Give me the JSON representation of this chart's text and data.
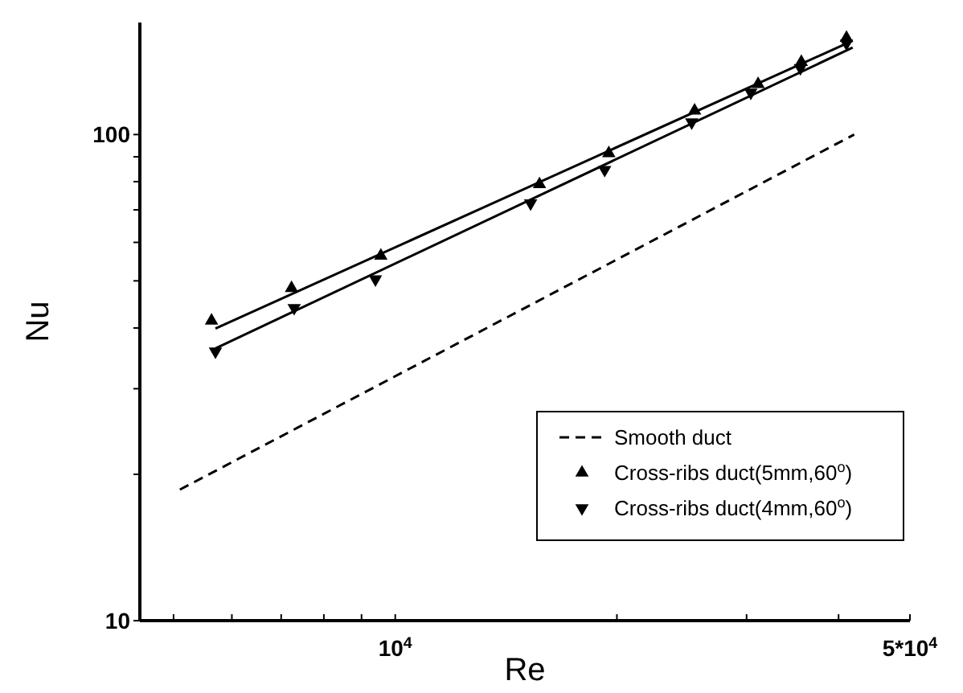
{
  "chart_data": {
    "type": "line",
    "xlabel": "Re",
    "ylabel": "Nu",
    "log": "xy",
    "xlim": [
      4500,
      50000
    ],
    "ylim": [
      10,
      170
    ],
    "xticks": [
      {
        "value": 5000,
        "label": null
      },
      {
        "value": 6000,
        "label": null
      },
      {
        "value": 7000,
        "label": null
      },
      {
        "value": 8000,
        "label": null
      },
      {
        "value": 9000,
        "label": null
      },
      {
        "value": 10000,
        "label": "10$^{4}$"
      },
      {
        "value": 20000,
        "label": null
      },
      {
        "value": 30000,
        "label": null
      },
      {
        "value": 40000,
        "label": null
      },
      {
        "value": 50000,
        "label": "5*10$^{4}$"
      }
    ],
    "yticks": [
      10,
      {
        "value": 20,
        "label": null
      },
      {
        "value": 30,
        "label": null
      },
      {
        "value": 40,
        "label": null
      },
      {
        "value": 50,
        "label": null
      },
      {
        "value": 60,
        "label": null
      },
      {
        "value": 70,
        "label": null
      },
      {
        "value": 80,
        "label": null
      },
      {
        "value": 90,
        "label": null
      },
      100
    ],
    "legend": "bottom right",
    "grid": false,
    "series": [
      {
        "name": "Smooth duct",
        "line_style": "dashed",
        "color": "#000000",
        "x": [
          5100,
          42000
        ],
        "values": [
          18.6,
          100
        ]
      },
      {
        "name": "Cross-ribs duct(5mm,60$^{o}$)",
        "type": "scatter",
        "marker": "triangle",
        "color": "#000000",
        "x": [
          5630,
          7230,
          9560,
          15700,
          19500,
          25500,
          31100,
          35600,
          41000
        ],
        "values": [
          41.4,
          48.3,
          56.3,
          79.0,
          91.5,
          112,
          127,
          141,
          158
        ]
      },
      {
        "name": "Cross-ribs duct(4mm,60$^{o}$)",
        "type": "scatter",
        "marker": "triangle-down",
        "color": "#000000",
        "x": [
          5700,
          7290,
          9400,
          15270,
          19250,
          25270,
          30400,
          35500,
          41000
        ],
        "values": [
          35.8,
          44.0,
          50.4,
          72.2,
          84.6,
          106,
          122,
          137,
          154
        ]
      },
      {
        "line_style": "solid",
        "color": "#000000",
        "x": [
          5700,
          41800
        ],
        "values": [
          39.9,
          156
        ]
      },
      {
        "line_style": "solid",
        "color": "#000000",
        "x": [
          5700,
          41800
        ],
        "values": [
          36.3,
          151
        ]
      }
    ]
  }
}
